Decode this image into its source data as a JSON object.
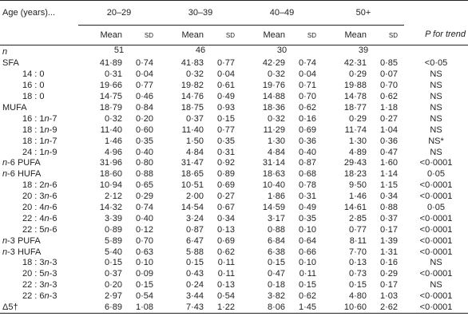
{
  "table": {
    "header": {
      "age_label": "Age (years)...",
      "groups": [
        "20–29",
        "30–39",
        "40–49",
        "50+"
      ],
      "subheaders": [
        "Mean",
        "SD",
        "Mean",
        "SD",
        "Mean",
        "SD",
        "Mean",
        "SD"
      ],
      "p_label": "P for trend"
    },
    "n_row": {
      "label": "n",
      "values": [
        "51",
        "46",
        "30",
        "39"
      ]
    },
    "rows": [
      [
        "SFA",
        "41·89",
        "0·74",
        "41·83",
        "0·77",
        "42·29",
        "0·74",
        "42·31",
        "0·85",
        "<0·05"
      ],
      [
        "14 : 0",
        "0·31",
        "0·04",
        "0·32",
        "0·04",
        "0·32",
        "0·04",
        "0·29",
        "0·07",
        "NS"
      ],
      [
        "16 : 0",
        "19·66",
        "0·77",
        "19·82",
        "0·61",
        "19·76",
        "0·71",
        "19·88",
        "0·70",
        "NS"
      ],
      [
        "18 : 0",
        "14·75",
        "0·46",
        "14·76",
        "0·49",
        "14·88",
        "0·70",
        "14·78",
        "0·62",
        "NS"
      ],
      [
        "MUFA",
        "18·79",
        "0·84",
        "18·75",
        "0·93",
        "18·36",
        "0·62",
        "18·77",
        "1·18",
        "NS"
      ],
      [
        "16 : 1n-7",
        "0·32",
        "0·20",
        "0·37",
        "0·15",
        "0·32",
        "0·16",
        "0·29",
        "0·27",
        "NS"
      ],
      [
        "18 : 1n-9",
        "11·40",
        "0·60",
        "11·40",
        "0·77",
        "11·29",
        "0·69",
        "11·74",
        "1·04",
        "NS"
      ],
      [
        "18 : 1n-7",
        "1·46",
        "0·35",
        "1·50",
        "0·35",
        "1·30",
        "0·36",
        "1·30",
        "0·36",
        "NS*"
      ],
      [
        "24 : 1n-9",
        "4·96",
        "0·40",
        "4·84",
        "0·31",
        "4·84",
        "0·40",
        "4·89",
        "0·47",
        "NS"
      ],
      [
        "n-6 PUFA",
        "31·96",
        "0·80",
        "31·47",
        "0·92",
        "31·14",
        "0·87",
        "29·43",
        "1·60",
        "<0·0001"
      ],
      [
        "n-6 HUFA",
        "18·60",
        "0·88",
        "18·65",
        "0·89",
        "18·63",
        "0·68",
        "18·23",
        "1·14",
        "0·05"
      ],
      [
        "18 : 2n-6",
        "10·94",
        "0·65",
        "10·51",
        "0·69",
        "10·40",
        "0·78",
        "9·50",
        "1·15",
        "<0·0001"
      ],
      [
        "20 : 3n-6",
        "2·12",
        "0·29",
        "2·00",
        "0·27",
        "1·86",
        "0·31",
        "1·46",
        "0·34",
        "<0·0001"
      ],
      [
        "20 : 4n-6",
        "14·32",
        "0·74",
        "14·54",
        "0·67",
        "14·59",
        "0·49",
        "14·61",
        "0·88",
        "0·05"
      ],
      [
        "22 : 4n-6",
        "3·39",
        "0·40",
        "3·24",
        "0·34",
        "3·17",
        "0·35",
        "2·85",
        "0·37",
        "<0·0001"
      ],
      [
        "22 : 5n-6",
        "0·89",
        "0·12",
        "0·87",
        "0·13",
        "0·88",
        "0·10",
        "0·77",
        "0·17",
        "<0·0001"
      ],
      [
        "n-3 PUFA",
        "5·89",
        "0·70",
        "6·47",
        "0·69",
        "6·84",
        "0·64",
        "8·11",
        "1·39",
        "<0·0001"
      ],
      [
        "n-3 HUFA",
        "5·40",
        "0·63",
        "5·88",
        "0·62",
        "6·38",
        "0·66",
        "7·70",
        "1·31",
        "<0·0001"
      ],
      [
        "18 : 3n-3",
        "0·15",
        "0·10",
        "0·15",
        "0·11",
        "0·15",
        "0·10",
        "0·13",
        "0·16",
        "NS"
      ],
      [
        "20 : 5n-3",
        "0·37",
        "0·09",
        "0·43",
        "0·11",
        "0·47",
        "0·11",
        "0·73",
        "0·29",
        "<0·0001"
      ],
      [
        "22 : 3n-3",
        "0·20",
        "0·15",
        "0·24",
        "0·13",
        "0·18",
        "0·15",
        "0·15",
        "0·17",
        "NS"
      ],
      [
        "22 : 6n-3",
        "2·97",
        "0·54",
        "3·44",
        "0·54",
        "3·82",
        "0·62",
        "4·80",
        "1·03",
        "<0·0001"
      ],
      [
        "Δ5†",
        "6·89",
        "1·08",
        "7·43",
        "1·22",
        "8·06",
        "1·45",
        "10·60",
        "2·62",
        "<0·0001"
      ]
    ]
  }
}
